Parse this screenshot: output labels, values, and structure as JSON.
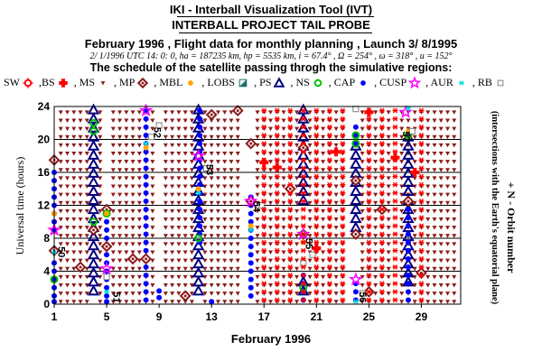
{
  "header": {
    "line1": "IKI - Interball Visualization Tool (IVT)",
    "line2": "INTERBALL PROJECT TAIL PROBE",
    "line3": "February 1996 ,  Flight data for monthly planning ,   Launch  3/ 8/1995",
    "line4": "2/ 1/1996 UTC 14: 0: 0, ha = 187235 km, hp =    5535 km, i = 67.4°  , Ω = 254°  , ω = 318°  , u = 152°",
    "line5": "The schedule of the satellite passing throgh the simulative regions:"
  },
  "legend": [
    {
      "label": "SW",
      "icon": "sw-circle-icon",
      "color": "#ff0000"
    },
    {
      "label": ",BS",
      "icon": "bs-cross-icon",
      "color": "#ff0000"
    },
    {
      "label": ", MS",
      "icon": "ms-triangle-down-icon",
      "color": "#8b1a1a"
    },
    {
      "label": ", MP",
      "icon": "mp-diamond-icon",
      "color": "#8b1a1a"
    },
    {
      "label": ", MBL",
      "icon": "mbl-dot-icon",
      "color": "#ffa500"
    },
    {
      "label": ", LOBS",
      "icon": "lobs-halfsquare-icon",
      "color": "#1f6f6f"
    },
    {
      "label": ", PS",
      "icon": "ps-triangle-icon",
      "color": "#000080"
    },
    {
      "label": ", NS",
      "icon": "ns-circle-icon",
      "color": "#00c000"
    },
    {
      "label": ", CAP",
      "icon": "cap-dot-icon",
      "color": "#0000ff"
    },
    {
      "label": ", CUSP",
      "icon": "cusp-star-icon",
      "color": "#ff00ff"
    },
    {
      "label": ", AUR",
      "icon": "aur-asterisk-icon",
      "color": "#00e0e0"
    },
    {
      "label": ", RB",
      "icon": "rb-square-icon",
      "color": "#808080"
    }
  ],
  "chart_data": {
    "type": "scatter",
    "xlabel": "February 1996",
    "ylabel": "Universal time (hours)",
    "right_label": "+ N - Orbit number",
    "right_sublabel": "(intersections with the Earth's equatorial plane)",
    "xlim": [
      1,
      32
    ],
    "ylim": [
      0,
      24
    ],
    "xticks": [
      1,
      5,
      9,
      13,
      17,
      21,
      25,
      29
    ],
    "yticks": [
      0,
      4,
      8,
      12,
      16,
      20,
      24
    ],
    "grid": "horizontal",
    "orbit_labels": [
      {
        "x": 1.3,
        "y": 7.0,
        "n": "50"
      },
      {
        "x": 5.5,
        "y": 1.5,
        "n": "51"
      },
      {
        "x": 8.6,
        "y": 21.5,
        "n": "52"
      },
      {
        "x": 12.6,
        "y": 17.0,
        "n": "53"
      },
      {
        "x": 16.2,
        "y": 12.5,
        "n": "54"
      },
      {
        "x": 20.2,
        "y": 8.0,
        "n": "55"
      },
      {
        "x": 24.3,
        "y": 1.5,
        "n": "56"
      },
      {
        "x": 27.6,
        "y": 21.0,
        "n": "57"
      }
    ],
    "series": [
      {
        "name": "MS",
        "marker": "triangle-down",
        "color": "#8b1a1a",
        "columns": [
          1.5,
          2,
          2.5,
          3,
          3.5,
          4.5,
          5.5,
          6,
          6.5,
          7,
          7.5,
          8,
          8.5,
          9.5,
          10,
          10.5,
          11,
          11.5,
          12.5,
          13,
          13.5,
          14,
          14.5,
          15,
          16.5,
          17,
          17.5,
          18,
          18.5,
          19,
          19.5,
          20.5,
          21,
          21.5,
          22,
          22.5,
          23,
          24.5,
          25,
          25.5,
          26,
          26.5,
          27.5,
          28,
          28.5,
          29,
          29.5,
          30,
          30.5,
          31,
          31.5
        ],
        "y_step": 1,
        "y_from": 0.3,
        "y_to": 23.8
      },
      {
        "name": "PS",
        "marker": "triangle",
        "color": "#000080",
        "points": [
          [
            4,
            23.6
          ],
          [
            4,
            22.5
          ],
          [
            4,
            21.4
          ],
          [
            4,
            20.3
          ],
          [
            4,
            19.2
          ],
          [
            4,
            18.1
          ],
          [
            4,
            17.0
          ],
          [
            4,
            15.9
          ],
          [
            4,
            14.8
          ],
          [
            4,
            13.7
          ],
          [
            4,
            12.6
          ],
          [
            4,
            11.5
          ],
          [
            4,
            10.4
          ],
          [
            4,
            9.3
          ],
          [
            4,
            8.2
          ],
          [
            4,
            7.1
          ],
          [
            4,
            6.0
          ],
          [
            4,
            4.9
          ],
          [
            4,
            3.8
          ],
          [
            4,
            2.7
          ],
          [
            4,
            1.6
          ],
          [
            12,
            23.6
          ],
          [
            12,
            22.5
          ],
          [
            12,
            21.4
          ],
          [
            12,
            20.3
          ],
          [
            12,
            19.2
          ],
          [
            12,
            18.1
          ],
          [
            12,
            17.0
          ],
          [
            12,
            15.9
          ],
          [
            12,
            14.8
          ],
          [
            12,
            13.7
          ],
          [
            12,
            12.6
          ],
          [
            12,
            11.5
          ],
          [
            12,
            10.4
          ],
          [
            12,
            9.3
          ],
          [
            12,
            8.2
          ],
          [
            12,
            7.1
          ],
          [
            12,
            6.0
          ],
          [
            12,
            4.9
          ],
          [
            12,
            3.8
          ],
          [
            12,
            2.7
          ],
          [
            12,
            1.6
          ],
          [
            20,
            23.6
          ],
          [
            20,
            22.5
          ],
          [
            20,
            21.4
          ],
          [
            20,
            20.3
          ],
          [
            20,
            19.2
          ],
          [
            20,
            18.1
          ],
          [
            20,
            17.0
          ],
          [
            20,
            15.9
          ],
          [
            20,
            14.8
          ],
          [
            20,
            13.7
          ],
          [
            20,
            12.6
          ],
          [
            20,
            2.7
          ],
          [
            20,
            1.6
          ],
          [
            24,
            19.2
          ],
          [
            24,
            18.1
          ],
          [
            24,
            17.0
          ],
          [
            24,
            15.9
          ],
          [
            24,
            14.8
          ],
          [
            24,
            13.7
          ],
          [
            24,
            12.6
          ],
          [
            24,
            11.5
          ],
          [
            24,
            10.4
          ],
          [
            24,
            9.3
          ],
          [
            28,
            20.3
          ],
          [
            28,
            19.2
          ],
          [
            28,
            18.1
          ],
          [
            28,
            17.0
          ],
          [
            28,
            15.9
          ],
          [
            28,
            14.8
          ],
          [
            28,
            13.7
          ],
          [
            28,
            12.6
          ],
          [
            28,
            11.5
          ],
          [
            28,
            10.4
          ],
          [
            28,
            9.3
          ],
          [
            28,
            8.2
          ],
          [
            28,
            7.1
          ],
          [
            28,
            6.0
          ],
          [
            28,
            4.9
          ],
          [
            28,
            3.8
          ],
          [
            28,
            2.7
          ]
        ]
      },
      {
        "name": "CAP",
        "marker": "dot",
        "color": "#0000ff",
        "points": [
          [
            1,
            16
          ],
          [
            1,
            15
          ],
          [
            1,
            14
          ],
          [
            1,
            13
          ],
          [
            1,
            12
          ],
          [
            1,
            11
          ],
          [
            1,
            10
          ],
          [
            1,
            9
          ],
          [
            1,
            5
          ],
          [
            1,
            4
          ],
          [
            1,
            3
          ],
          [
            1,
            2
          ],
          [
            1,
            1
          ],
          [
            1,
            0.3
          ],
          [
            5,
            11
          ],
          [
            5,
            10
          ],
          [
            5,
            9
          ],
          [
            5,
            8
          ],
          [
            5,
            7
          ],
          [
            5,
            6
          ],
          [
            5,
            5
          ],
          [
            5,
            4
          ],
          [
            5,
            3
          ],
          [
            5,
            2
          ],
          [
            5,
            1
          ],
          [
            5,
            0.3
          ],
          [
            8,
            23.5
          ],
          [
            8,
            22.5
          ],
          [
            8,
            21.5
          ],
          [
            8,
            20.5
          ],
          [
            8,
            19.5
          ],
          [
            8,
            18.5
          ],
          [
            8,
            17.5
          ],
          [
            8,
            16.5
          ],
          [
            8,
            15.5
          ],
          [
            8,
            14.5
          ],
          [
            8,
            13.5
          ],
          [
            8,
            12.5
          ],
          [
            8,
            11.5
          ],
          [
            8,
            10.5
          ],
          [
            8,
            9.5
          ],
          [
            8,
            8.5
          ],
          [
            8,
            7.5
          ],
          [
            8,
            6.5
          ],
          [
            8,
            5.5
          ],
          [
            8,
            4.5
          ],
          [
            8,
            3.5
          ],
          [
            8,
            2.5
          ],
          [
            8,
            1.5
          ],
          [
            8,
            0.5
          ],
          [
            9,
            0.8
          ],
          [
            9,
            1.6
          ],
          [
            12.1,
            23.5
          ],
          [
            12.1,
            22.5
          ],
          [
            12.1,
            21.5
          ],
          [
            12.1,
            20.5
          ],
          [
            12.1,
            19.5
          ],
          [
            12.1,
            18.5
          ],
          [
            12.1,
            17.5
          ],
          [
            12.1,
            16.5
          ],
          [
            12.1,
            15.5
          ],
          [
            12.1,
            14.5
          ],
          [
            12.1,
            13.5
          ],
          [
            12.1,
            12.5
          ],
          [
            12.1,
            11.5
          ],
          [
            12.1,
            10.5
          ],
          [
            12.1,
            9.5
          ],
          [
            12.1,
            8.5
          ],
          [
            12.1,
            7.5
          ],
          [
            13,
            0.3
          ],
          [
            16,
            13
          ],
          [
            16,
            12
          ],
          [
            16,
            11
          ],
          [
            16,
            10
          ],
          [
            16,
            9
          ],
          [
            16,
            8
          ],
          [
            16,
            7
          ],
          [
            16,
            6
          ],
          [
            16,
            5
          ],
          [
            16,
            4
          ],
          [
            16,
            3
          ],
          [
            16,
            2
          ],
          [
            16,
            1
          ],
          [
            20,
            3.5
          ],
          [
            20,
            2.5
          ],
          [
            20,
            1.5
          ],
          [
            20,
            0.5
          ],
          [
            24,
            21.5
          ],
          [
            24,
            20.5
          ],
          [
            24,
            19.5
          ],
          [
            24,
            2.5
          ],
          [
            24,
            1.5
          ],
          [
            24,
            0.5
          ],
          [
            28,
            12.5
          ],
          [
            28,
            11.5
          ],
          [
            28,
            10.5
          ],
          [
            28,
            9.5
          ],
          [
            28,
            8.5
          ],
          [
            28,
            7.5
          ],
          [
            28,
            6.5
          ],
          [
            28,
            5.5
          ],
          [
            28,
            4.5
          ],
          [
            28,
            3.5
          ],
          [
            28,
            2.5
          ],
          [
            28,
            1.5
          ],
          [
            28,
            0.5
          ]
        ]
      },
      {
        "name": "MP",
        "marker": "diamond",
        "color": "#8b1a1a",
        "points": [
          [
            1,
            17.5
          ],
          [
            5,
            11.5
          ],
          [
            4,
            9
          ],
          [
            3,
            4.5
          ],
          [
            7,
            5.5
          ],
          [
            8,
            5.5
          ],
          [
            11,
            1
          ],
          [
            15,
            23.5
          ],
          [
            16,
            19.5
          ],
          [
            20,
            19
          ],
          [
            19,
            14
          ],
          [
            20,
            8.5
          ],
          [
            16,
            12.5
          ],
          [
            24,
            15
          ],
          [
            24,
            8.5
          ],
          [
            26,
            11.5
          ],
          [
            28,
            12.5
          ],
          [
            25,
            1.5
          ],
          [
            29,
            3.8
          ],
          [
            1,
            6.5
          ],
          [
            5,
            7
          ],
          [
            13,
            23
          ]
        ]
      },
      {
        "name": "BS",
        "marker": "cross",
        "color": "#ff0000",
        "points": [
          [
            17,
            17.2
          ],
          [
            18,
            16.6
          ],
          [
            21,
            6.8
          ],
          [
            22.5,
            18.5
          ],
          [
            25,
            23.3
          ],
          [
            27,
            17.8
          ],
          [
            28.5,
            16
          ]
        ]
      },
      {
        "name": "NS",
        "marker": "circle",
        "color": "#00c000",
        "points": [
          [
            4,
            22
          ],
          [
            4,
            21
          ],
          [
            5,
            11
          ],
          [
            4,
            10
          ],
          [
            12,
            8
          ],
          [
            20,
            8.5
          ],
          [
            20,
            2
          ],
          [
            24,
            19.5
          ],
          [
            24,
            20.5
          ],
          [
            28,
            20.5
          ],
          [
            1,
            3
          ]
        ]
      },
      {
        "name": "CUSP",
        "marker": "star",
        "color": "#ff00ff",
        "points": [
          [
            8,
            23.5
          ],
          [
            1,
            9
          ],
          [
            5,
            4.3
          ],
          [
            12,
            18
          ],
          [
            16,
            12.5
          ],
          [
            20,
            8.5
          ],
          [
            24,
            3
          ],
          [
            27.8,
            23.3
          ]
        ]
      },
      {
        "name": "AUR",
        "marker": "asterisk",
        "color": "#00e0e0",
        "points": [
          [
            8,
            19.5
          ],
          [
            5,
            1.5
          ],
          [
            12,
            13.5
          ],
          [
            16,
            9
          ],
          [
            20,
            5
          ],
          [
            24,
            0.3
          ],
          [
            28,
            23.8
          ],
          [
            1,
            6.3
          ]
        ]
      },
      {
        "name": "MBL",
        "marker": "dot",
        "color": "#ffa500",
        "points": [
          [
            1,
            11
          ],
          [
            5,
            11
          ],
          [
            8,
            19
          ],
          [
            12,
            14
          ],
          [
            16,
            9.5
          ],
          [
            20,
            7.5
          ],
          [
            28,
            21
          ]
        ]
      },
      {
        "name": "RB",
        "marker": "square",
        "color": "#808080",
        "points": [
          [
            8.4,
            20.3
          ],
          [
            12.6,
            16.5
          ],
          [
            16.8,
            12
          ],
          [
            20.7,
            6
          ],
          [
            24.5,
            1.3
          ],
          [
            28.3,
            21
          ],
          [
            24,
            23.7
          ],
          [
            20,
            5
          ],
          [
            9,
            21.7
          ],
          [
            5,
            3.3
          ]
        ]
      },
      {
        "name": "SW",
        "marker": "asterisk",
        "color": "#ff0000",
        "columns": [
          17,
          18,
          19,
          20,
          21,
          22,
          23,
          25,
          26,
          27,
          29
        ],
        "y_step": 1,
        "y_from": 0.5,
        "y_to": 23.5
      }
    ]
  }
}
